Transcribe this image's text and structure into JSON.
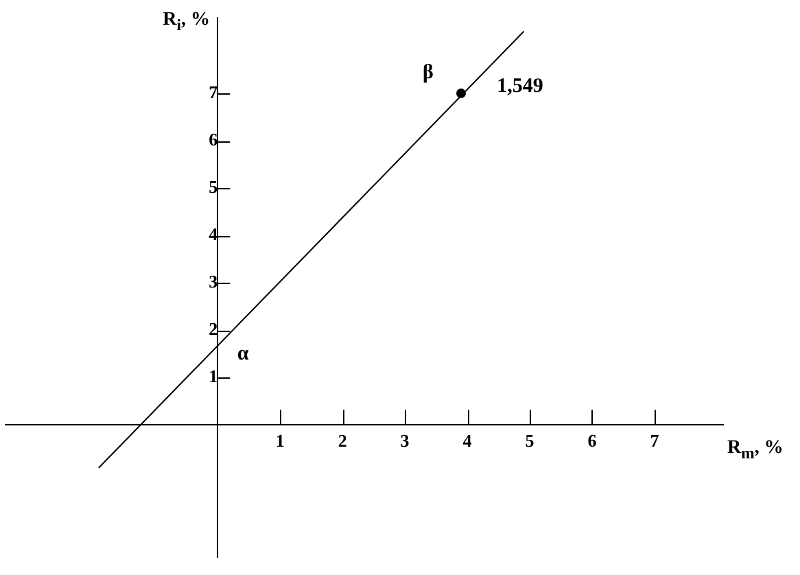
{
  "chart_data": {
    "type": "line",
    "xlabel": "R$_{m}$, %",
    "ylabel": "R$_{i}$, %",
    "xlim": [
      -3.4,
      8.1
    ],
    "xticks": [
      1,
      2,
      3,
      4,
      5,
      6,
      7
    ],
    "ylim": [
      -2.8,
      8.6
    ],
    "yticks": [
      1,
      2,
      3,
      4,
      5,
      6,
      7
    ],
    "line_style": "solid",
    "marker": "circle",
    "series": [
      {
        "marker": "none",
        "color": "#000000",
        "x": [
          -1.9,
          4.9
        ],
        "values": [
          -0.9,
          8.3
        ]
      },
      {
        "type": "scatter",
        "color": "#000000",
        "x": [
          3.9
        ],
        "values": [
          7.0
        ]
      }
    ],
    "annotations": [
      "α",
      "β",
      "1,549"
    ]
  }
}
